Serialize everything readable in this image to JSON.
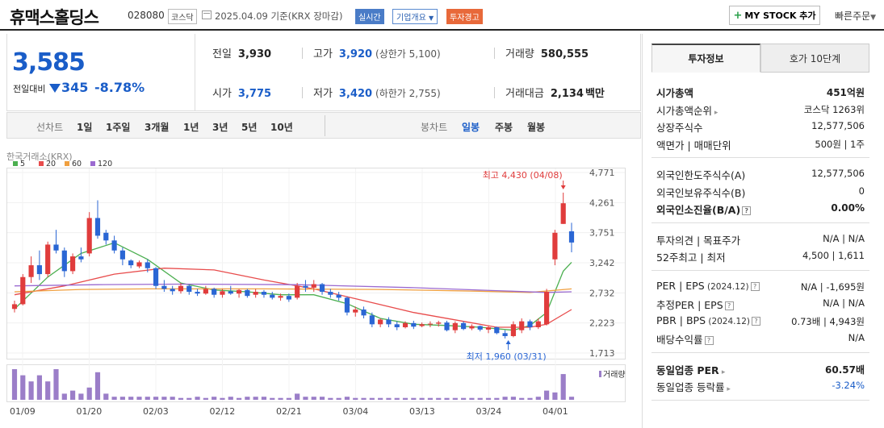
{
  "header": {
    "company_name": "휴맥스홀딩스",
    "code": "028080",
    "market": "코스닥",
    "date_text": "2025.04.09  기준(KRX 장마감)",
    "realtime_label": "실시간",
    "company_info_label": "기업개요",
    "warning_label": "투자경고",
    "mystock_label": "MY STOCK 추가",
    "quick_order_label": "빠른주문"
  },
  "price": {
    "current": "3,585",
    "change_label": "전일대비",
    "change": "345",
    "change_pct": "-8.78%",
    "prev_label": "전일",
    "prev": "3,930",
    "high_label": "고가",
    "high": "3,920",
    "upper_limit": "(상한가 5,100)",
    "volume_label": "거래량",
    "volume": "580,555",
    "open_label": "시가",
    "open": "3,775",
    "low_label": "저가",
    "low": "3,420",
    "lower_limit": "(하한가 2,755)",
    "amount_label": "거래대금",
    "amount": "2,134",
    "amount_unit": "백만"
  },
  "toolbar": {
    "line_chart_label": "선차트",
    "periods": [
      "1일",
      "1주일",
      "3개월",
      "1년",
      "3년",
      "5년",
      "10년"
    ],
    "candle_label": "봉차트",
    "candle_periods": [
      "일봉",
      "주봉",
      "월봉"
    ],
    "active_candle": "일봉"
  },
  "chart_data": {
    "type": "candlestick",
    "source": "한국거래소(KRX)",
    "legend": [
      "5",
      "20",
      "60",
      "120"
    ],
    "legend_colors": [
      "#4caf50",
      "#e84c4c",
      "#f0a040",
      "#9b6ad0"
    ],
    "up_color": "#e03c3c",
    "down_color": "#2a66d4",
    "y_ticks": [
      "4,771",
      "4,261",
      "3,751",
      "3,242",
      "2,732",
      "2,223",
      "1,713"
    ],
    "x_ticks": [
      "01/09",
      "01/20",
      "02/03",
      "02/12",
      "02/21",
      "03/04",
      "03/13",
      "03/24",
      "04/01"
    ],
    "ylim": [
      1713,
      4771
    ],
    "high_annotation": "최고 4,430 (04/08)",
    "low_annotation": "최저 1,960 (03/31)",
    "volume_label": "거래량",
    "candles": [
      {
        "o": 2460,
        "h": 2600,
        "l": 2400,
        "c": 2540
      },
      {
        "o": 2540,
        "h": 3050,
        "l": 2520,
        "c": 3000
      },
      {
        "o": 3000,
        "h": 3350,
        "l": 2900,
        "c": 3200
      },
      {
        "o": 3200,
        "h": 3450,
        "l": 2950,
        "c": 3050
      },
      {
        "o": 3050,
        "h": 3600,
        "l": 3000,
        "c": 3550
      },
      {
        "o": 3550,
        "h": 3800,
        "l": 3400,
        "c": 3450
      },
      {
        "o": 3450,
        "h": 3500,
        "l": 3000,
        "c": 3100
      },
      {
        "o": 3100,
        "h": 3400,
        "l": 3050,
        "c": 3350
      },
      {
        "o": 3350,
        "h": 3500,
        "l": 3250,
        "c": 3300
      },
      {
        "o": 3400,
        "h": 4100,
        "l": 3350,
        "c": 4000
      },
      {
        "o": 4000,
        "h": 4300,
        "l": 3650,
        "c": 3700
      },
      {
        "o": 3750,
        "h": 3800,
        "l": 3550,
        "c": 3620
      },
      {
        "o": 3620,
        "h": 3700,
        "l": 3400,
        "c": 3450
      },
      {
        "o": 3450,
        "h": 3500,
        "l": 3200,
        "c": 3300
      },
      {
        "o": 3280,
        "h": 3300,
        "l": 3150,
        "c": 3200
      },
      {
        "o": 3180,
        "h": 3280,
        "l": 3150,
        "c": 3250
      },
      {
        "o": 3250,
        "h": 3300,
        "l": 3080,
        "c": 3150
      },
      {
        "o": 3150,
        "h": 3170,
        "l": 2800,
        "c": 2850
      },
      {
        "o": 2850,
        "h": 2950,
        "l": 2750,
        "c": 2800
      },
      {
        "o": 2800,
        "h": 2850,
        "l": 2700,
        "c": 2760
      },
      {
        "o": 2760,
        "h": 2900,
        "l": 2720,
        "c": 2850
      },
      {
        "o": 2850,
        "h": 2870,
        "l": 2700,
        "c": 2750
      },
      {
        "o": 2750,
        "h": 2800,
        "l": 2680,
        "c": 2720
      },
      {
        "o": 2720,
        "h": 2850,
        "l": 2700,
        "c": 2800
      },
      {
        "o": 2800,
        "h": 2820,
        "l": 2650,
        "c": 2700
      },
      {
        "o": 2700,
        "h": 2800,
        "l": 2650,
        "c": 2760
      },
      {
        "o": 2760,
        "h": 2850,
        "l": 2700,
        "c": 2720
      },
      {
        "o": 2720,
        "h": 2800,
        "l": 2650,
        "c": 2780
      },
      {
        "o": 2780,
        "h": 2800,
        "l": 2650,
        "c": 2680
      },
      {
        "o": 2700,
        "h": 2800,
        "l": 2650,
        "c": 2750
      },
      {
        "o": 2750,
        "h": 2780,
        "l": 2650,
        "c": 2700
      },
      {
        "o": 2700,
        "h": 2750,
        "l": 2620,
        "c": 2650
      },
      {
        "o": 2650,
        "h": 2720,
        "l": 2600,
        "c": 2680
      },
      {
        "o": 2680,
        "h": 2720,
        "l": 2580,
        "c": 2620
      },
      {
        "o": 2650,
        "h": 2900,
        "l": 2620,
        "c": 2850
      },
      {
        "o": 2850,
        "h": 2950,
        "l": 2750,
        "c": 2820
      },
      {
        "o": 2820,
        "h": 2950,
        "l": 2750,
        "c": 2880
      },
      {
        "o": 2880,
        "h": 2900,
        "l": 2700,
        "c": 2750
      },
      {
        "o": 2750,
        "h": 2800,
        "l": 2650,
        "c": 2700
      },
      {
        "o": 2700,
        "h": 2750,
        "l": 2600,
        "c": 2650
      },
      {
        "o": 2650,
        "h": 2670,
        "l": 2350,
        "c": 2400
      },
      {
        "o": 2400,
        "h": 2500,
        "l": 2330,
        "c": 2450
      },
      {
        "o": 2450,
        "h": 2500,
        "l": 2300,
        "c": 2350
      },
      {
        "o": 2350,
        "h": 2400,
        "l": 2150,
        "c": 2200
      },
      {
        "o": 2200,
        "h": 2300,
        "l": 2150,
        "c": 2280
      },
      {
        "o": 2280,
        "h": 2320,
        "l": 2150,
        "c": 2200
      },
      {
        "o": 2200,
        "h": 2250,
        "l": 2100,
        "c": 2150
      },
      {
        "o": 2150,
        "h": 2250,
        "l": 2130,
        "c": 2220
      },
      {
        "o": 2220,
        "h": 2260,
        "l": 2120,
        "c": 2160
      },
      {
        "o": 2170,
        "h": 2230,
        "l": 2150,
        "c": 2200
      },
      {
        "o": 2200,
        "h": 2250,
        "l": 2150,
        "c": 2210
      },
      {
        "o": 2210,
        "h": 2260,
        "l": 2160,
        "c": 2230
      },
      {
        "o": 2230,
        "h": 2260,
        "l": 2080,
        "c": 2100
      },
      {
        "o": 2100,
        "h": 2250,
        "l": 2050,
        "c": 2220
      },
      {
        "o": 2220,
        "h": 2250,
        "l": 2100,
        "c": 2120
      },
      {
        "o": 2130,
        "h": 2200,
        "l": 2100,
        "c": 2170
      },
      {
        "o": 2170,
        "h": 2180,
        "l": 2080,
        "c": 2110
      },
      {
        "o": 2110,
        "h": 2170,
        "l": 2050,
        "c": 2150
      },
      {
        "o": 2150,
        "h": 2160,
        "l": 2030,
        "c": 2050
      },
      {
        "o": 2050,
        "h": 2100,
        "l": 1960,
        "c": 2000
      },
      {
        "o": 2000,
        "h": 2250,
        "l": 1980,
        "c": 2200
      },
      {
        "o": 2100,
        "h": 2300,
        "l": 2050,
        "c": 2250
      },
      {
        "o": 2250,
        "h": 2280,
        "l": 2100,
        "c": 2150
      },
      {
        "o": 2150,
        "h": 2300,
        "l": 2120,
        "c": 2250
      },
      {
        "o": 2200,
        "h": 2800,
        "l": 2180,
        "c": 2750
      },
      {
        "o": 3300,
        "h": 3800,
        "l": 3200,
        "c": 3750
      },
      {
        "o": 3900,
        "h": 4430,
        "l": 3900,
        "c": 4250
      },
      {
        "o": 3775,
        "h": 3920,
        "l": 3420,
        "c": 3585
      }
    ],
    "ma": {
      "ma5": {
        "x0": 0,
        "points": [
          [
            0,
            2460
          ],
          [
            4,
            3000
          ],
          [
            8,
            3400
          ],
          [
            12,
            3580
          ],
          [
            16,
            3300
          ],
          [
            20,
            2900
          ],
          [
            24,
            2780
          ],
          [
            28,
            2750
          ],
          [
            32,
            2700
          ],
          [
            36,
            2700
          ],
          [
            40,
            2550
          ],
          [
            44,
            2300
          ],
          [
            48,
            2200
          ],
          [
            52,
            2180
          ],
          [
            56,
            2150
          ],
          [
            60,
            2100
          ],
          [
            62,
            2180
          ],
          [
            64,
            2400
          ],
          [
            66,
            3100
          ],
          [
            67,
            3250
          ]
        ]
      },
      "ma20": {
        "x0": 0,
        "points": [
          [
            0,
            2700
          ],
          [
            6,
            2850
          ],
          [
            12,
            3050
          ],
          [
            18,
            3150
          ],
          [
            24,
            3120
          ],
          [
            30,
            2950
          ],
          [
            36,
            2800
          ],
          [
            42,
            2600
          ],
          [
            48,
            2400
          ],
          [
            54,
            2250
          ],
          [
            58,
            2150
          ],
          [
            62,
            2150
          ],
          [
            64,
            2200
          ],
          [
            67,
            2450
          ]
        ]
      },
      "ma60": {
        "x0": 0,
        "points": [
          [
            0,
            2750
          ],
          [
            8,
            2790
          ],
          [
            16,
            2800
          ],
          [
            30,
            2800
          ],
          [
            44,
            2790
          ],
          [
            56,
            2760
          ],
          [
            62,
            2740
          ],
          [
            67,
            2800
          ]
        ]
      },
      "ma120": {
        "x0": 0,
        "points": [
          [
            0,
            2850
          ],
          [
            10,
            2870
          ],
          [
            20,
            2880
          ],
          [
            34,
            2870
          ],
          [
            48,
            2820
          ],
          [
            58,
            2770
          ],
          [
            64,
            2740
          ],
          [
            67,
            2750
          ]
        ]
      }
    },
    "volumes": [
      5,
      4,
      3,
      4,
      3,
      5,
      1,
      1.5,
      1,
      2,
      4.5,
      1,
      0.5,
      0.5,
      0.5,
      0.5,
      0.5,
      0.5,
      0.5,
      0.5,
      0.3,
      0.3,
      0.5,
      0.3,
      0.5,
      0.3,
      0.5,
      0.3,
      0.5,
      0.5,
      0.5,
      0.3,
      0.3,
      0.3,
      1,
      0.5,
      0.5,
      0.5,
      0.3,
      0.3,
      0.5,
      0.3,
      0.3,
      0.3,
      0.3,
      0.3,
      0.3,
      0.3,
      0.3,
      0.3,
      0.3,
      0.3,
      0.3,
      0.3,
      0.3,
      0.3,
      0.3,
      0.3,
      0.3,
      0.5,
      0.5,
      0.3,
      0.3,
      0.5,
      1.5,
      1.2,
      4.2,
      0.5
    ]
  },
  "invest_panel": {
    "tab_info": "투자정보",
    "tab_orderbook": "호가 10단계",
    "sections": [
      [
        {
          "k": "시가총액",
          "v": "451억원",
          "bold": true
        },
        {
          "k": "시가총액순위",
          "v": "코스닥 1263위",
          "arrow": true
        },
        {
          "k": "상장주식수",
          "v": "12,577,506"
        },
        {
          "k": "액면가 | 매매단위",
          "v": "500원 | 1주"
        }
      ],
      [
        {
          "k": "외국인한도주식수(A)",
          "v": "12,577,506"
        },
        {
          "k": "외국인보유주식수(B)",
          "v": "0"
        },
        {
          "k": "외국인소진율(B/A)",
          "v": "0.00%",
          "bold": true,
          "help": true
        }
      ],
      [
        {
          "k": "투자의견 | 목표주가",
          "v": "N/A | N/A"
        },
        {
          "k": "52주최고 | 최저",
          "v": "4,500 | 1,611"
        }
      ],
      [
        {
          "k": "PER | EPS",
          "sub": "(2024.12)",
          "v": "N/A | -1,695원",
          "help": true
        },
        {
          "k": "추정PER | EPS",
          "v": "N/A | N/A",
          "help": true
        },
        {
          "k": "PBR | BPS",
          "sub": "(2024.12)",
          "v": "0.73배 | 4,943원",
          "help": true
        },
        {
          "k": "배당수익률",
          "v": "N/A",
          "help": true
        }
      ],
      [
        {
          "k": "동일업종 PER",
          "v": "60.57배",
          "bold": true,
          "arrow": true
        },
        {
          "k": "동일업종 등락률",
          "v": "-3.24%",
          "arrow": true,
          "blue": true
        }
      ]
    ]
  }
}
